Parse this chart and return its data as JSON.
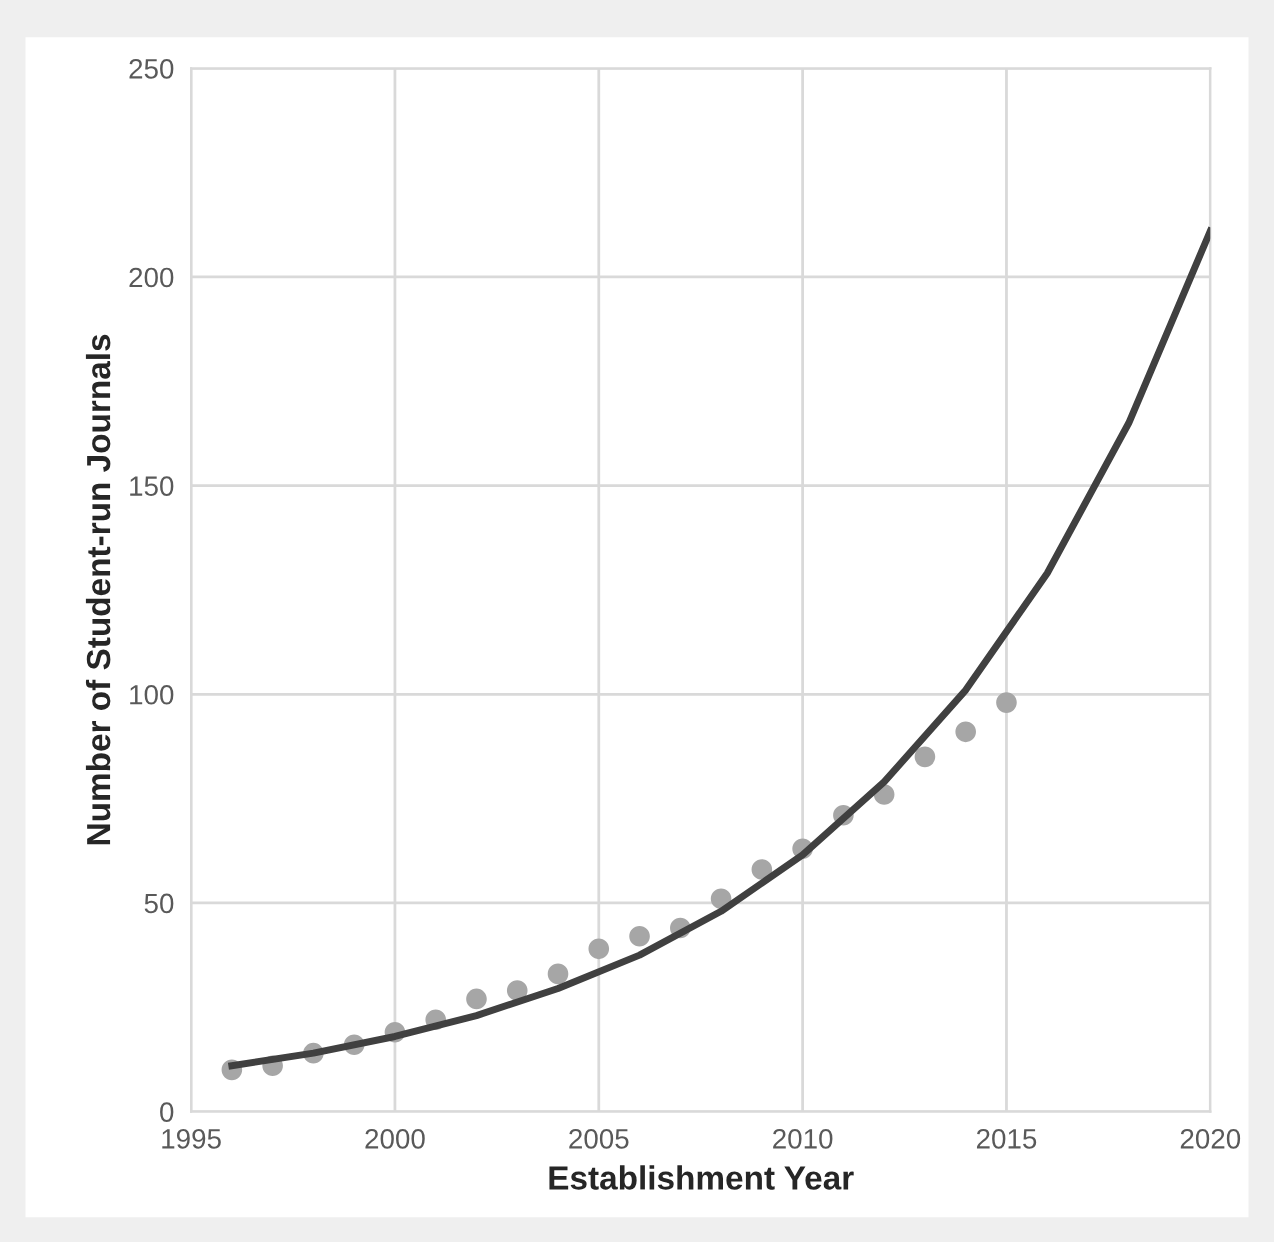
{
  "chart_data": {
    "type": "scatter",
    "xlabel": "Establishment Year",
    "ylabel": "Number of Student-run Journals",
    "xlim": [
      1995,
      2020
    ],
    "xticks": [
      1995,
      2000,
      2005,
      2010,
      2015,
      2020
    ],
    "ylim": [
      0,
      250
    ],
    "yticks": [
      0,
      50,
      100,
      150,
      200,
      250
    ],
    "grid": true,
    "series": [
      {
        "marker": "circle",
        "color": "#a6a6a6",
        "x": [
          1996,
          1997,
          1998,
          1999,
          2000,
          2001,
          2002,
          2003,
          2004,
          2005,
          2006,
          2007,
          2008,
          2009,
          2010,
          2011,
          2012,
          2013,
          2014,
          2015
        ],
        "values": [
          10,
          11,
          14,
          16,
          19,
          22,
          27,
          29,
          33,
          39,
          42,
          44,
          51,
          58,
          63,
          71,
          76,
          85,
          91,
          98
        ]
      },
      {
        "type": "line",
        "color": "#404040",
        "line_style": "solid",
        "marker": "none",
        "x": [
          1996,
          1998,
          2000,
          2002,
          2004,
          2006,
          2008,
          2010,
          2012,
          2014,
          2016,
          2018,
          2020
        ],
        "values": [
          11,
          14,
          18,
          23,
          29.5,
          37.5,
          48,
          61.5,
          79,
          101,
          129,
          165,
          211
        ]
      }
    ]
  }
}
